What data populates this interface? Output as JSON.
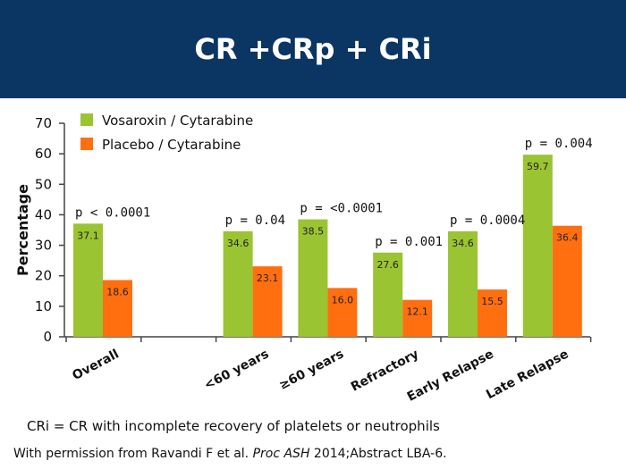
{
  "header": {
    "title": "CR +CRp + CRi"
  },
  "colors": {
    "header_bg": "#0b3563",
    "series_1": "#9ac432",
    "series_2": "#ff6f0f"
  },
  "chart_data": {
    "type": "bar",
    "title": "",
    "xlabel": "",
    "ylabel": "Percentage",
    "ylim": [
      0,
      70
    ],
    "yticks": [
      0,
      10,
      20,
      30,
      40,
      50,
      60,
      70
    ],
    "categories": [
      "Overall",
      "",
      "<60 years",
      "≥60 years",
      "Refractory",
      "Early Relapse",
      "Late Relapse"
    ],
    "series": [
      {
        "name": "Vosaroxin / Cytarabine",
        "values": [
          37.1,
          null,
          34.6,
          38.5,
          27.6,
          34.6,
          59.7
        ]
      },
      {
        "name": "Placebo / Cytarabine",
        "values": [
          18.6,
          null,
          23.1,
          16.0,
          12.1,
          15.5,
          36.4
        ]
      }
    ],
    "value_labels": [
      [
        "37.1",
        null,
        "34.6",
        "38.5",
        "27.6",
        "34.6",
        "59.7"
      ],
      [
        "18.6",
        null,
        "23.1",
        "16.0",
        "12.1",
        "15.5",
        "36.4"
      ]
    ],
    "annotations": [
      {
        "category_index": 0,
        "text": "p < 0.0001"
      },
      {
        "category_index": 2,
        "text": "p = 0.04"
      },
      {
        "category_index": 3,
        "text": "p = <0.0001"
      },
      {
        "category_index": 4,
        "text": "p = 0.001"
      },
      {
        "category_index": 5,
        "text": "p = 0.0004"
      },
      {
        "category_index": 6,
        "text": "p = 0.004"
      }
    ],
    "legend": {
      "position": "top-left"
    },
    "grid": false
  },
  "footnote": "CRi = CR with incomplete recovery of platelets or neutrophils",
  "credit": {
    "prefix": "With permission from Ravandi F et al.",
    "journal": "Proc ASH",
    "suffix": "2014;Abstract LBA-6."
  }
}
